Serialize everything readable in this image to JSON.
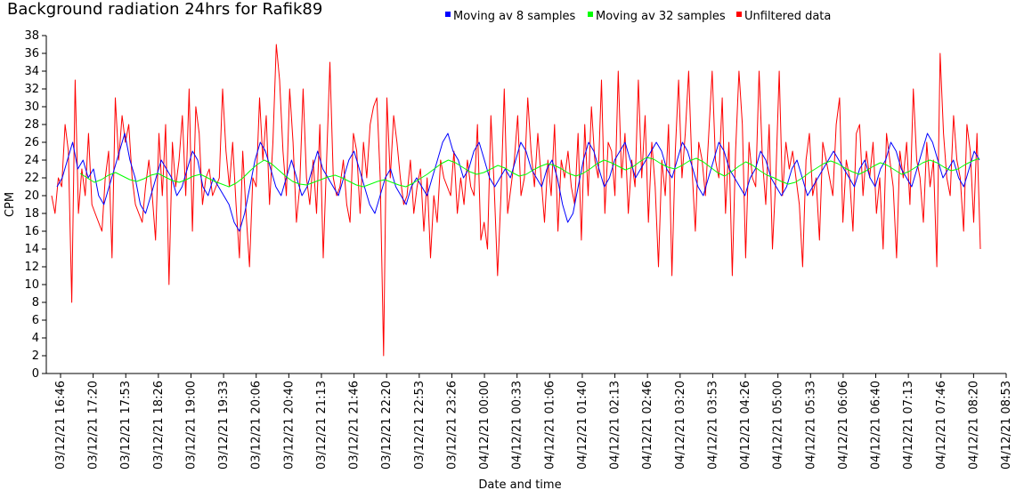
{
  "chart_data": {
    "type": "line",
    "title": "Background radiation 24hrs for Rafik89",
    "xlabel": "Date and time",
    "ylabel": "CPM",
    "ylim": [
      0,
      38
    ],
    "y_ticks": [
      0,
      2,
      4,
      6,
      8,
      10,
      12,
      14,
      16,
      18,
      20,
      22,
      24,
      26,
      28,
      30,
      32,
      34,
      36,
      38
    ],
    "x_ticks": [
      "03/12/21 16:46",
      "03/12/21 17:20",
      "03/12/21 17:53",
      "03/12/21 18:26",
      "03/12/21 19:00",
      "03/12/21 19:33",
      "03/12/21 20:06",
      "03/12/21 20:40",
      "03/12/21 21:13",
      "03/12/21 21:46",
      "03/12/21 22:20",
      "03/12/21 22:53",
      "03/12/21 23:26",
      "04/12/21 00:00",
      "04/12/21 00:33",
      "04/12/21 01:06",
      "04/12/21 01:40",
      "04/12/21 02:13",
      "04/12/21 02:46",
      "04/12/21 03:20",
      "04/12/21 03:53",
      "04/12/21 04:26",
      "04/12/21 05:00",
      "04/12/21 05:33",
      "04/12/21 06:06",
      "04/12/21 06:40",
      "04/12/21 07:13",
      "04/12/21 07:46",
      "04/12/21 08:20",
      "04/12/21 08:53"
    ],
    "legend_position": "top",
    "grid": false,
    "series": [
      {
        "name": "Moving av 8 samples",
        "color": "#0000ff",
        "values": [
          21,
          22,
          24,
          26,
          23,
          24,
          22,
          23,
          20,
          19,
          21,
          23,
          25,
          27,
          24,
          22,
          19,
          18,
          20,
          22,
          24,
          23,
          22,
          20,
          21,
          23,
          25,
          24,
          21,
          20,
          22,
          21,
          20,
          19,
          17,
          16,
          18,
          21,
          24,
          26,
          25,
          23,
          21,
          20,
          22,
          24,
          22,
          20,
          21,
          23,
          25,
          23,
          22,
          21,
          20,
          22,
          24,
          25,
          23,
          21,
          19,
          18,
          20,
          22,
          23,
          21,
          20,
          19,
          21,
          22,
          21,
          20,
          22,
          24,
          26,
          27,
          25,
          24,
          22,
          23,
          25,
          26,
          24,
          22,
          21,
          22,
          23,
          22,
          24,
          26,
          25,
          23,
          22,
          21,
          23,
          24,
          22,
          19,
          17,
          18,
          21,
          24,
          26,
          25,
          23,
          21,
          22,
          24,
          25,
          26,
          24,
          22,
          23,
          24,
          25,
          26,
          25,
          23,
          22,
          24,
          26,
          25,
          23,
          21,
          20,
          22,
          24,
          26,
          25,
          23,
          22,
          21,
          20,
          22,
          23,
          25,
          24,
          22,
          21,
          20,
          21,
          23,
          24,
          22,
          20,
          21,
          22,
          23,
          24,
          25,
          24,
          23,
          22,
          21,
          23,
          24,
          22,
          21,
          23,
          24,
          26,
          25,
          23,
          22,
          21,
          23,
          25,
          27,
          26,
          24,
          22,
          23,
          24,
          22,
          21,
          23,
          25,
          24
        ]
      },
      {
        "name": "Moving av 32 samples",
        "color": "#00ff00",
        "values": [
          22.5,
          22,
          21.5,
          21.8,
          22.3,
          22.6,
          22.2,
          21.8,
          21.6,
          21.9,
          22.3,
          22.5,
          22.1,
          21.7,
          21.5,
          21.8,
          22.2,
          22.4,
          22.0,
          21.6,
          21.3,
          21.0,
          21.4,
          22.0,
          22.8,
          23.5,
          24.0,
          23.6,
          22.9,
          22.2,
          21.6,
          21.3,
          21.2,
          21.5,
          21.8,
          22.1,
          22.3,
          22.0,
          21.6,
          21.2,
          21.0,
          21.3,
          21.6,
          21.8,
          21.5,
          21.2,
          21.0,
          21.4,
          21.9,
          22.4,
          23.0,
          23.6,
          24.0,
          23.7,
          23.2,
          22.7,
          22.4,
          22.6,
          23.0,
          23.4,
          23.1,
          22.6,
          22.2,
          22.4,
          22.9,
          23.3,
          23.6,
          23.4,
          23.0,
          22.5,
          22.2,
          22.5,
          23.0,
          23.6,
          24.0,
          23.7,
          23.3,
          22.9,
          23.2,
          23.8,
          24.3,
          24.1,
          23.6,
          23.2,
          23.0,
          23.4,
          23.9,
          24.2,
          23.8,
          23.2,
          22.6,
          22.2,
          22.7,
          23.3,
          23.8,
          23.4,
          22.8,
          22.3,
          22.0,
          21.6,
          21.3,
          21.5,
          22.0,
          22.6,
          23.1,
          23.6,
          23.9,
          23.6,
          23.1,
          22.7,
          22.4,
          22.8,
          23.3,
          23.7,
          23.4,
          22.9,
          22.4,
          22.7,
          23.2,
          23.7,
          24.0,
          23.7,
          23.2,
          22.8,
          23.0,
          23.5,
          23.9,
          24.2
        ]
      },
      {
        "name": "Unfiltered data",
        "color": "#ff0000",
        "values": [
          20,
          18,
          22,
          21,
          28,
          25,
          8,
          33,
          18,
          23,
          20,
          27,
          19,
          18,
          17,
          16,
          22,
          25,
          13,
          31,
          24,
          29,
          26,
          28,
          22,
          19,
          18,
          17,
          21,
          24,
          20,
          15,
          27,
          20,
          28,
          10,
          26,
          21,
          24,
          29,
          20,
          32,
          16,
          30,
          27,
          19,
          22,
          23,
          20,
          21,
          22,
          32,
          25,
          21,
          26,
          19,
          13,
          25,
          18,
          12,
          22,
          21,
          31,
          24,
          29,
          19,
          26,
          37,
          33,
          25,
          20,
          32,
          26,
          17,
          21,
          32,
          22,
          19,
          24,
          18,
          28,
          13,
          24,
          35,
          22,
          20,
          21,
          24,
          19,
          17,
          27,
          25,
          18,
          26,
          22,
          28,
          30,
          31,
          22,
          2,
          31,
          22,
          29,
          26,
          22,
          19,
          20,
          24,
          18,
          21,
          23,
          16,
          22,
          13,
          20,
          17,
          24,
          22,
          21,
          20,
          25,
          18,
          22,
          19,
          24,
          21,
          20,
          28,
          15,
          17,
          14,
          29,
          21,
          11,
          20,
          32,
          18,
          21,
          24,
          29,
          20,
          22,
          31,
          25,
          21,
          27,
          22,
          17,
          24,
          20,
          28,
          16,
          24,
          22,
          25,
          21,
          19,
          27,
          15,
          28,
          20,
          30,
          24,
          22,
          33,
          18,
          26,
          25,
          20,
          34,
          22,
          27,
          18,
          24,
          21,
          33,
          22,
          29,
          17,
          26,
          21,
          12,
          24,
          20,
          28,
          11,
          25,
          33,
          22,
          27,
          34,
          23,
          16,
          26,
          24,
          20,
          27,
          34,
          24,
          22,
          31,
          18,
          26,
          11,
          25,
          34,
          28,
          13,
          26,
          22,
          21,
          34,
          24,
          19,
          28,
          14,
          22,
          34,
          20,
          26,
          23,
          25,
          22,
          19,
          12,
          24,
          27,
          20,
          22,
          15,
          26,
          24,
          22,
          20,
          28,
          31,
          17,
          24,
          22,
          16,
          27,
          28,
          20,
          25,
          22,
          26,
          18,
          22,
          14,
          27,
          24,
          21,
          13,
          25,
          22,
          26,
          19,
          32,
          24,
          22,
          17,
          26,
          21,
          24,
          12,
          36,
          27,
          22,
          20,
          29,
          24,
          22,
          16,
          28,
          25,
          17,
          27,
          14
        ]
      }
    ]
  }
}
